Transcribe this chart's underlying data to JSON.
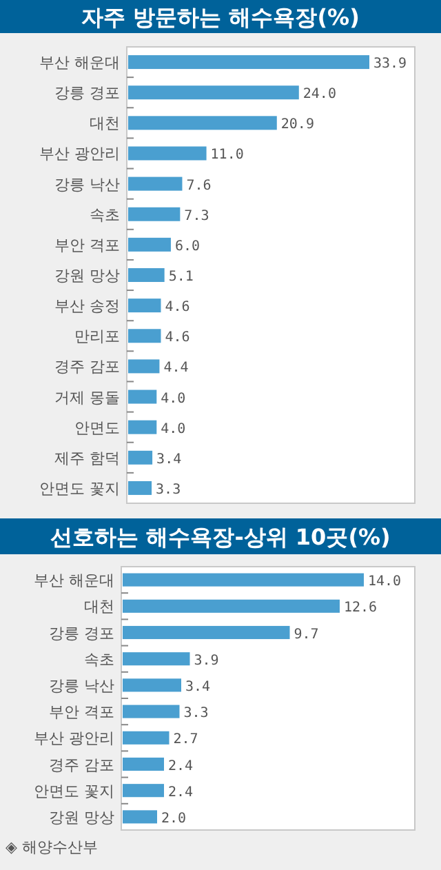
{
  "chart_data": [
    {
      "type": "bar",
      "orientation": "horizontal",
      "title": "자주 방문하는 해수욕장(%)",
      "color": "#4a9fd0",
      "categories": [
        "부산 해운대",
        "강릉 경포",
        "대천",
        "부산 광안리",
        "강릉 낙산",
        "속초",
        "부안 격포",
        "강원 망상",
        "부산 송정",
        "만리포",
        "경주 감포",
        "거제 몽돌",
        "안면도",
        "제주 함덕",
        "안면도 꽃지"
      ],
      "values": [
        33.9,
        24.0,
        20.9,
        11.0,
        7.6,
        7.3,
        6.0,
        5.1,
        4.6,
        4.6,
        4.4,
        4.0,
        4.0,
        3.4,
        3.3
      ],
      "value_labels": [
        "33.9",
        "24.0",
        "20.9",
        "11.0",
        "7.6",
        "7.3",
        "6.0",
        "5.1",
        "4.6",
        "4.6",
        "4.4",
        "4.0",
        "4.0",
        "3.4",
        "3.3"
      ]
    },
    {
      "type": "bar",
      "orientation": "horizontal",
      "title": "선호하는 해수욕장-상위 10곳(%)",
      "color": "#4a9fd0",
      "categories": [
        "부산 해운대",
        "대천",
        "강릉 경포",
        "속초",
        "강릉 낙산",
        "부안 격포",
        "부산 광안리",
        "경주 감포",
        "안면도 꽃지",
        "강원 망상"
      ],
      "values": [
        14.0,
        12.6,
        9.7,
        3.9,
        3.4,
        3.3,
        2.7,
        2.4,
        2.4,
        2.0
      ],
      "value_labels": [
        "14.0",
        "12.6",
        "9.7",
        "3.9",
        "3.4",
        "3.3",
        "2.7",
        "2.4",
        "2.4",
        "2.0"
      ],
      "annotations": [
        "◈ 해양수산부"
      ]
    }
  ]
}
